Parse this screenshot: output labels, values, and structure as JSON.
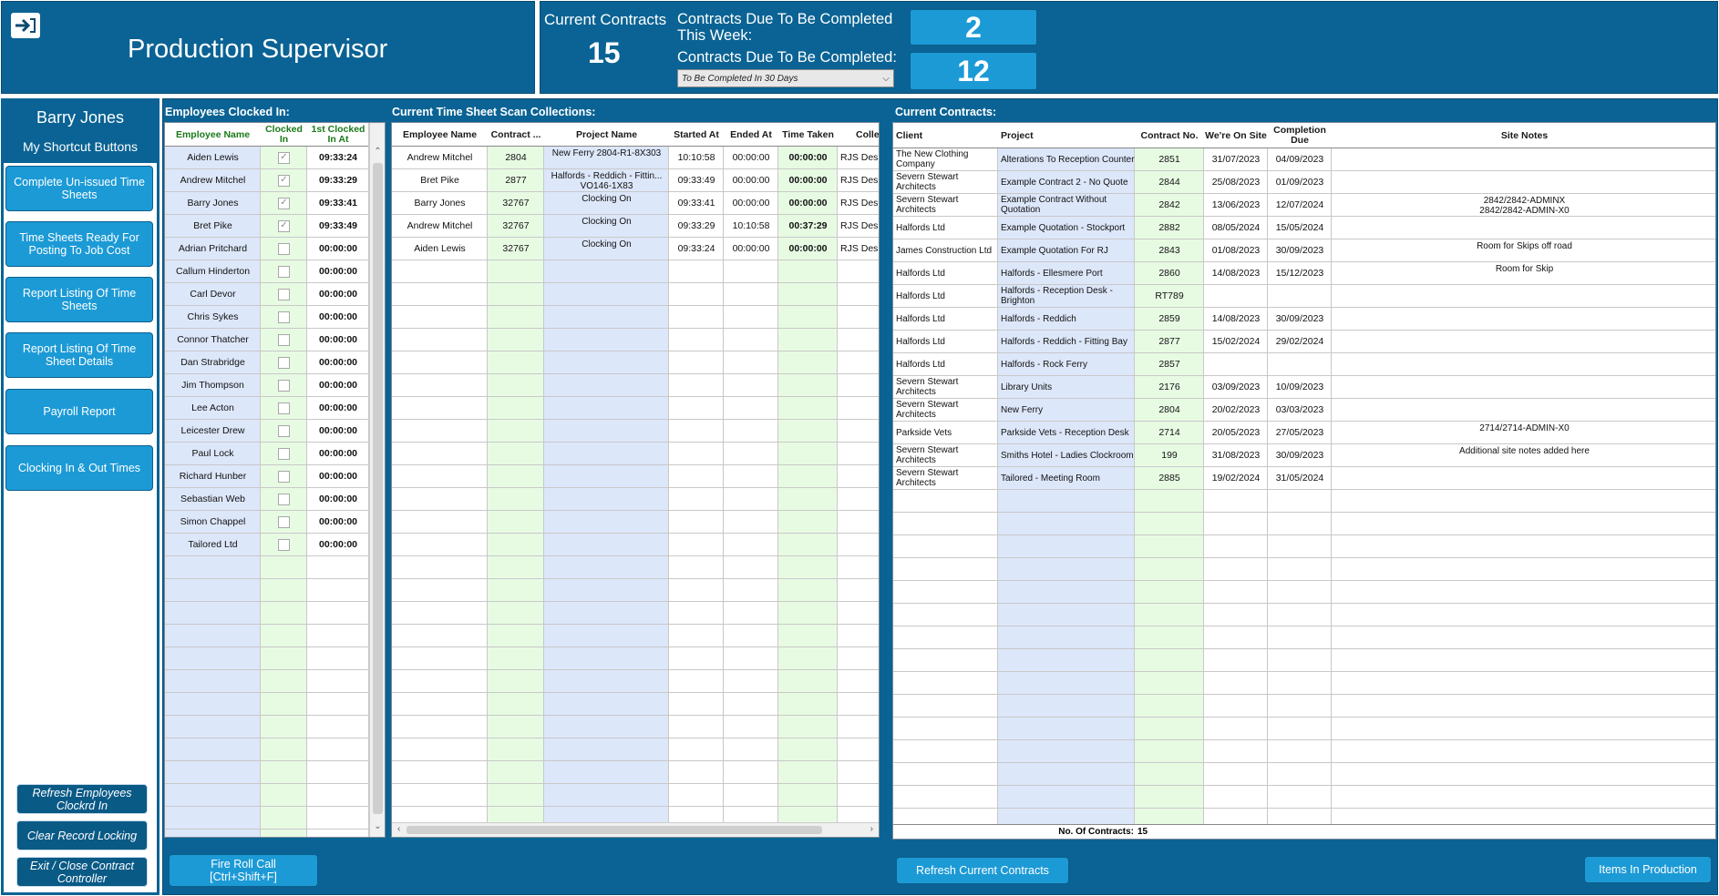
{
  "header": {
    "title": "Production Supervisor",
    "current_contracts_label": "Current Contracts",
    "current_contracts_value": "15",
    "due_week_label": "Contracts Due To Be Completed This Week:",
    "due_week_value": "2",
    "due_label": "Contracts Due To Be Completed:",
    "due_value": "12",
    "due_select": "To Be Completed In 30 Days"
  },
  "sidebar": {
    "user": "Barry Jones",
    "shortcut_title": "My Shortcut Buttons",
    "buttons": [
      "Complete Un-issued Time Sheets",
      "Time Sheets Ready For Posting To Job Cost",
      "Report Listing Of Time Sheets",
      "Report Listing Of Time Sheet Details",
      "Payroll Report",
      "Clocking In & Out Times"
    ],
    "bottom_buttons": [
      "Refresh Employees Clockrd In",
      "Clear Record Locking",
      "Exit / Close Contract Controller"
    ]
  },
  "employees": {
    "title": "Employees Clocked In:",
    "headers": [
      "Employee Name",
      "Clocked In",
      "1st Clocked In At"
    ],
    "rows": [
      {
        "name": "Aiden Lewis",
        "clocked": true,
        "time": "09:33:24"
      },
      {
        "name": "Andrew Mitchel",
        "clocked": true,
        "time": "09:33:29"
      },
      {
        "name": "Barry Jones",
        "clocked": true,
        "time": "09:33:41"
      },
      {
        "name": "Bret Pike",
        "clocked": true,
        "time": "09:33:49"
      },
      {
        "name": "Adrian Pritchard",
        "clocked": false,
        "time": "00:00:00"
      },
      {
        "name": "Callum Hinderton",
        "clocked": false,
        "time": "00:00:00"
      },
      {
        "name": "Carl Devor",
        "clocked": false,
        "time": "00:00:00"
      },
      {
        "name": "Chris Sykes",
        "clocked": false,
        "time": "00:00:00"
      },
      {
        "name": "Connor Thatcher",
        "clocked": false,
        "time": "00:00:00"
      },
      {
        "name": "Dan Strabridge",
        "clocked": false,
        "time": "00:00:00"
      },
      {
        "name": "Jim Thompson",
        "clocked": false,
        "time": "00:00:00"
      },
      {
        "name": "Lee Acton",
        "clocked": false,
        "time": "00:00:00"
      },
      {
        "name": "Leicester Drew",
        "clocked": false,
        "time": "00:00:00"
      },
      {
        "name": "Paul Lock",
        "clocked": false,
        "time": "00:00:00"
      },
      {
        "name": "Richard Hunber",
        "clocked": false,
        "time": "00:00:00"
      },
      {
        "name": "Sebastian Web",
        "clocked": false,
        "time": "00:00:00"
      },
      {
        "name": "Simon Chappel",
        "clocked": false,
        "time": "00:00:00"
      },
      {
        "name": "Tailored Ltd",
        "clocked": false,
        "time": "00:00:00"
      }
    ],
    "fire_roll_call": "Fire Roll Call [Ctrl+Shift+F]"
  },
  "timesheets": {
    "title": "Current Time Sheet Scan Collections:",
    "headers": [
      "Employee Name",
      "Contract ...",
      "Project Name",
      "Started At",
      "Ended At",
      "Time Taken",
      "Colle"
    ],
    "rows": [
      {
        "employee": "Andrew Mitchel",
        "contract": "2804",
        "project": "New Ferry 2804-R1-8X303",
        "started": "10:10:58",
        "ended": "00:00:00",
        "taken": "00:00:00",
        "collection": "RJS Deskt"
      },
      {
        "employee": "Bret Pike",
        "contract": "2877",
        "project": "Halfords - Reddich - Fittin... VO146-1X83",
        "started": "09:33:49",
        "ended": "00:00:00",
        "taken": "00:00:00",
        "collection": "RJS Deskt"
      },
      {
        "employee": "Barry Jones",
        "contract": "32767",
        "project": "Clocking On",
        "started": "09:33:41",
        "ended": "00:00:00",
        "taken": "00:00:00",
        "collection": "RJS Deskt"
      },
      {
        "employee": "Andrew Mitchel",
        "contract": "32767",
        "project": "Clocking On",
        "started": "09:33:29",
        "ended": "10:10:58",
        "taken": "00:37:29",
        "collection": "RJS Deskt"
      },
      {
        "employee": "Aiden Lewis",
        "contract": "32767",
        "project": "Clocking On",
        "started": "09:33:24",
        "ended": "00:00:00",
        "taken": "00:00:00",
        "collection": "RJS Deskt"
      }
    ]
  },
  "contracts": {
    "title": "Current Contracts:",
    "headers": [
      "Client",
      "Project",
      "Contract No.",
      "We're On Site",
      "Completion Due",
      "Site Notes"
    ],
    "rows": [
      {
        "client": "The New Clothing Company",
        "project": "Alterations To Reception Counter",
        "no": "2851",
        "onsite": "31/07/2023",
        "due": "04/09/2023",
        "notes": ""
      },
      {
        "client": "Severn Stewart Architects",
        "project": "Example Contract 2 - No Quote",
        "no": "2844",
        "onsite": "25/08/2023",
        "due": "01/09/2023",
        "notes": ""
      },
      {
        "client": "Severn Stewart Architects",
        "project": "Example Contract Without Quotation",
        "no": "2842",
        "onsite": "13/06/2023",
        "due": "12/07/2024",
        "notes": "2842/2842-ADMINX\n2842/2842-ADMIN-X0"
      },
      {
        "client": "Halfords Ltd",
        "project": "Example Quotation - Stockport",
        "no": "2882",
        "onsite": "08/05/2024",
        "due": "15/05/2024",
        "notes": ""
      },
      {
        "client": "James Construction Ltd",
        "project": "Example Quotation For RJ",
        "no": "2843",
        "onsite": "01/08/2023",
        "due": "30/09/2023",
        "notes": "Room for Skips off road"
      },
      {
        "client": "Halfords Ltd",
        "project": "Halfords - Ellesmere Port",
        "no": "2860",
        "onsite": "14/08/2023",
        "due": "15/12/2023",
        "notes": "Room for Skip"
      },
      {
        "client": "Halfords Ltd",
        "project": "Halfords - Reception Desk - Brighton",
        "no": "RT789",
        "onsite": "",
        "due": "",
        "notes": ""
      },
      {
        "client": "Halfords Ltd",
        "project": "Halfords - Reddich",
        "no": "2859",
        "onsite": "14/08/2023",
        "due": "30/09/2023",
        "notes": ""
      },
      {
        "client": "Halfords Ltd",
        "project": "Halfords - Reddich - Fitting Bay",
        "no": "2877",
        "onsite": "15/02/2024",
        "due": "29/02/2024",
        "notes": ""
      },
      {
        "client": "Halfords Ltd",
        "project": "Halfords - Rock Ferry",
        "no": "2857",
        "onsite": "",
        "due": "",
        "notes": ""
      },
      {
        "client": "Severn Stewart Architects",
        "project": "Library Units",
        "no": "2176",
        "onsite": "03/09/2023",
        "due": "10/09/2023",
        "notes": ""
      },
      {
        "client": "Severn Stewart Architects",
        "project": "New Ferry",
        "no": "2804",
        "onsite": "20/02/2023",
        "due": "03/03/2023",
        "notes": ""
      },
      {
        "client": "Parkside Vets",
        "project": "Parkside Vets - Reception Desk",
        "no": "2714",
        "onsite": "20/05/2023",
        "due": "27/05/2023",
        "notes": "2714/2714-ADMIN-X0"
      },
      {
        "client": "Severn Stewart Architects",
        "project": "Smiths Hotel - Ladies Clockroom",
        "no": "199",
        "onsite": "31/08/2023",
        "due": "30/09/2023",
        "notes": "Additional site notes added here"
      },
      {
        "client": "Severn Stewart Architects",
        "project": "Tailored - Meeting Room",
        "no": "2885",
        "onsite": "19/02/2024",
        "due": "31/05/2024",
        "notes": ""
      }
    ],
    "footer_label": "No. Of Contracts:",
    "footer_value": "15",
    "refresh_button": "Refresh Current Contracts",
    "items_button": "Items In Production"
  },
  "colors": {
    "panel": "#0a6394",
    "button": "#1c9ad6",
    "blue_col": "#dde7fa",
    "green_col": "#e7fbe3"
  }
}
